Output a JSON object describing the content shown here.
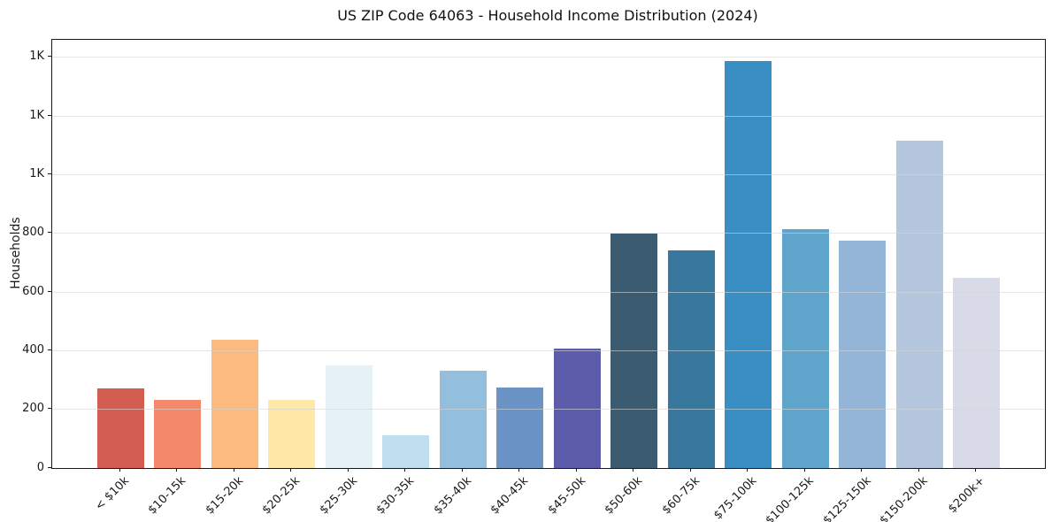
{
  "title": "US ZIP Code 64063 - Household Income Distribution (2024)",
  "chart_data": {
    "type": "bar",
    "title": "US ZIP Code 64063 - Household Income Distribution (2024)",
    "xlabel": "",
    "ylabel": "Households",
    "categories": [
      "< $10k",
      "$10-15k",
      "$15-20k",
      "$20-25k",
      "$25-30k",
      "$30-35k",
      "$35-40k",
      "$40-45k",
      "$45-50k",
      "$50-60k",
      "$60-75k",
      "$75-100k",
      "$100-125k",
      "$125-150k",
      "$150-200k",
      "$200k+"
    ],
    "values": [
      272,
      231,
      437,
      231,
      350,
      113,
      333,
      273,
      407,
      798,
      742,
      1387,
      813,
      775,
      1117,
      650
    ],
    "bar_colors": [
      "#d45d52",
      "#f4886b",
      "#fcbb7e",
      "#fde8a7",
      "#e6f1f7",
      "#bfdfee",
      "#93bedd",
      "#6b93c6",
      "#5c5caa",
      "#3a5b70",
      "#38789f",
      "#398ec3",
      "#5fa5cb",
      "#92b5d8",
      "#b5c7df",
      "#d8dae8"
    ],
    "ylim": [
      0,
      1460
    ],
    "yticks": [
      0,
      200,
      400,
      600,
      800,
      1000,
      1200,
      1400
    ],
    "ytick_labels": [
      "0",
      "200",
      "400",
      "600",
      "800",
      "1K",
      "1K",
      "1K"
    ],
    "grid": "horizontal-only",
    "legend": "none",
    "background_color": "#ffffff",
    "spine_color": "#1a1a1a",
    "grid_color": "#e3e3e3",
    "x_tick_label_rotation_deg": 45
  }
}
